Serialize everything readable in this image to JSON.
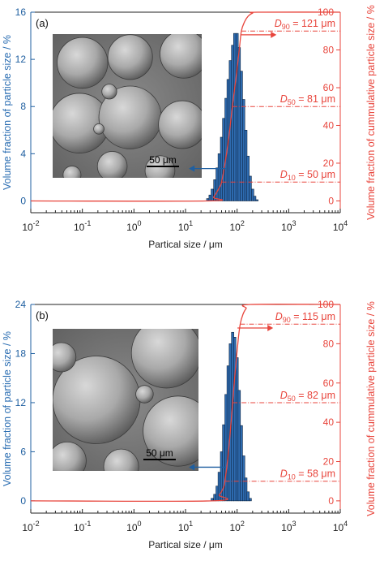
{
  "chart_data": [
    {
      "type": "bar",
      "panel_label": "(a)",
      "xlabel": "Partical size / μm",
      "ylabel_left": "Volume fraction of particle size / %",
      "ylabel_right": "Volume fraction of cummulative particle size / %",
      "x_scale": "log",
      "xlim": [
        0.01,
        10000
      ],
      "x_ticks": [
        0.01,
        0.1,
        1,
        10,
        100,
        1000,
        10000
      ],
      "ylim_left": [
        -1,
        16
      ],
      "y_ticks_left": [
        0,
        4,
        8,
        12,
        16
      ],
      "ylim_right": [
        -6.25,
        100
      ],
      "y_ticks_right": [
        0,
        20,
        40,
        60,
        80,
        100
      ],
      "colors": {
        "bars": "#2e6bb0",
        "bar_edge": "#0d2440",
        "cumulative": "#e8453c",
        "left_axis": "#1f5fa0",
        "right_axis": "#e8453c"
      },
      "series": [
        {
          "kind": "histogram",
          "axis": "left",
          "x": [
            27,
            30,
            33,
            37,
            41,
            45,
            50,
            55,
            61,
            67,
            74,
            82,
            90,
            100,
            110,
            121,
            134,
            148,
            163,
            180,
            200,
            220,
            243
          ],
          "values": [
            0.2,
            0.5,
            1.0,
            1.8,
            2.8,
            4.0,
            5.4,
            7.0,
            8.7,
            10.3,
            11.9,
            13.2,
            14.2,
            14.2,
            13.0,
            11.0,
            8.6,
            6.0,
            3.8,
            2.1,
            1.0,
            0.4,
            0.1
          ]
        },
        {
          "kind": "cumulative",
          "axis": "right",
          "x": [
            0.01,
            27,
            35,
            45,
            50,
            60,
            70,
            81,
            95,
            110,
            121,
            140,
            165,
            200,
            250,
            10000
          ],
          "values": [
            0,
            0,
            2,
            7,
            10,
            22,
            35,
            50,
            65,
            80,
            90,
            95,
            98,
            99.5,
            100,
            100
          ]
        }
      ],
      "annotations": [
        {
          "label": "D",
          "sub": "90",
          "text": " = 121 μm",
          "x": 121,
          "y": 90
        },
        {
          "label": "D",
          "sub": "50",
          "text": " = 81 μm",
          "x": 81,
          "y": 50
        },
        {
          "label": "D",
          "sub": "10",
          "text": " = 50 μm",
          "x": 50,
          "y": 10
        }
      ],
      "inset": {
        "kind": "sem-image",
        "scale_bar": "50 μm"
      }
    },
    {
      "type": "bar",
      "panel_label": "(b)",
      "xlabel": "Partical size / μm",
      "ylabel_left": "Volume fraction of particle size / %",
      "ylabel_right": "Volume fraction of cummulative particle size / %",
      "x_scale": "log",
      "xlim": [
        0.01,
        10000
      ],
      "x_ticks": [
        0.01,
        0.1,
        1,
        10,
        100,
        1000,
        10000
      ],
      "ylim_left": [
        -1.5,
        24
      ],
      "y_ticks_left": [
        0,
        6,
        12,
        18,
        24
      ],
      "ylim_right": [
        -6.25,
        100
      ],
      "y_ticks_right": [
        0,
        20,
        40,
        60,
        80,
        100
      ],
      "colors": {
        "bars": "#2e6bb0",
        "bar_edge": "#0d2440",
        "cumulative": "#e8453c",
        "left_axis": "#1f5fa0",
        "right_axis": "#e8453c"
      },
      "series": [
        {
          "kind": "histogram",
          "axis": "left",
          "x": [
            33,
            37,
            41,
            45,
            50,
            55,
            61,
            67,
            74,
            82,
            90,
            100,
            110,
            121,
            134,
            148,
            163,
            180
          ],
          "values": [
            0.3,
            0.8,
            1.8,
            3.5,
            6.0,
            9.3,
            13.0,
            16.5,
            19.2,
            20.6,
            20.0,
            17.5,
            13.5,
            9.2,
            5.5,
            2.8,
            1.1,
            0.3
          ]
        },
        {
          "kind": "cumulative",
          "axis": "right",
          "x": [
            0.01,
            33,
            45,
            55,
            58,
            65,
            72,
            82,
            92,
            105,
            115,
            130,
            150,
            180,
            10000
          ],
          "values": [
            0,
            0,
            3,
            7,
            10,
            20,
            32,
            50,
            66,
            82,
            90,
            95,
            98,
            100,
            100
          ]
        }
      ],
      "annotations": [
        {
          "label": "D",
          "sub": "90",
          "text": " = 115 μm",
          "x": 115,
          "y": 90
        },
        {
          "label": "D",
          "sub": "50",
          "text": " = 82 μm",
          "x": 82,
          "y": 50
        },
        {
          "label": "D",
          "sub": "10",
          "text": " = 58 μm",
          "x": 58,
          "y": 10
        }
      ],
      "inset": {
        "kind": "sem-image",
        "scale_bar": "50 μm"
      }
    }
  ]
}
